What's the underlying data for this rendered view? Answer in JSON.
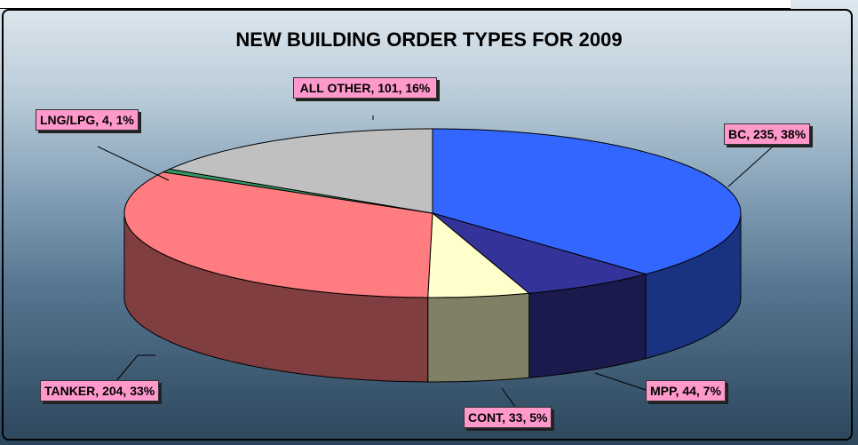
{
  "chart_data": {
    "type": "pie3d",
    "title": "NEW BUILDING ORDER TYPES FOR 2009",
    "values": [
      235,
      44,
      33,
      204,
      4,
      101
    ],
    "value_labels": [
      "BC, 235, 38%",
      "MPP, 44, 7%",
      "CONT, 33, 5%",
      "TANKER, 204, 33%",
      "LNG/LPG, 4, 1%",
      "ALL OTHER, 101, 16%"
    ],
    "colors": [
      "#3366ff",
      "#333399",
      "#ffffcc",
      "#ff7c80",
      "#339966",
      "#c0c0c0"
    ]
  }
}
